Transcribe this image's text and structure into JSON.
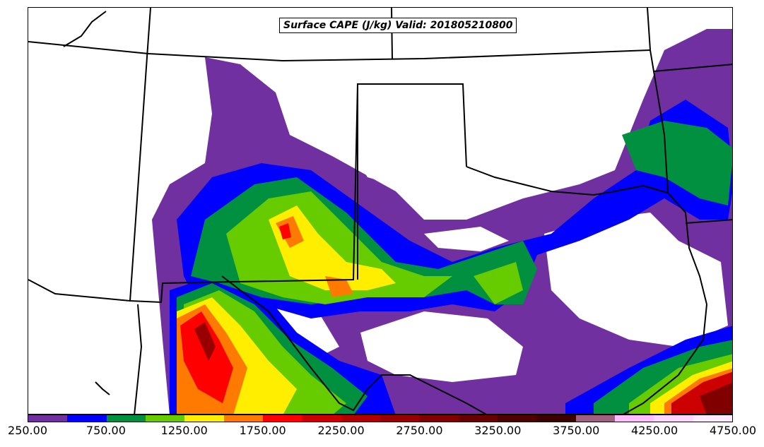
{
  "map": {
    "title": "Surface CAPE (J/kg) Valid: 201805210800",
    "colorbar": {
      "min": 250,
      "max": 4750,
      "step": 250,
      "colors": [
        "#7030a0",
        "#0000ff",
        "#009040",
        "#66cc00",
        "#ffee00",
        "#ff7a00",
        "#ff0000",
        "#cc0000",
        "#b00000",
        "#980000",
        "#800000",
        "#680000",
        "#500000",
        "#3c0000",
        "#a06080",
        "#ffbfff",
        "#ffd6ff",
        "#ffeaff"
      ],
      "tick_labels": [
        "250.00",
        "750.00",
        "1250.00",
        "1750.00",
        "2250.00",
        "2750.00",
        "3250.00",
        "3750.00",
        "4250.00",
        "4750.00"
      ]
    }
  }
}
